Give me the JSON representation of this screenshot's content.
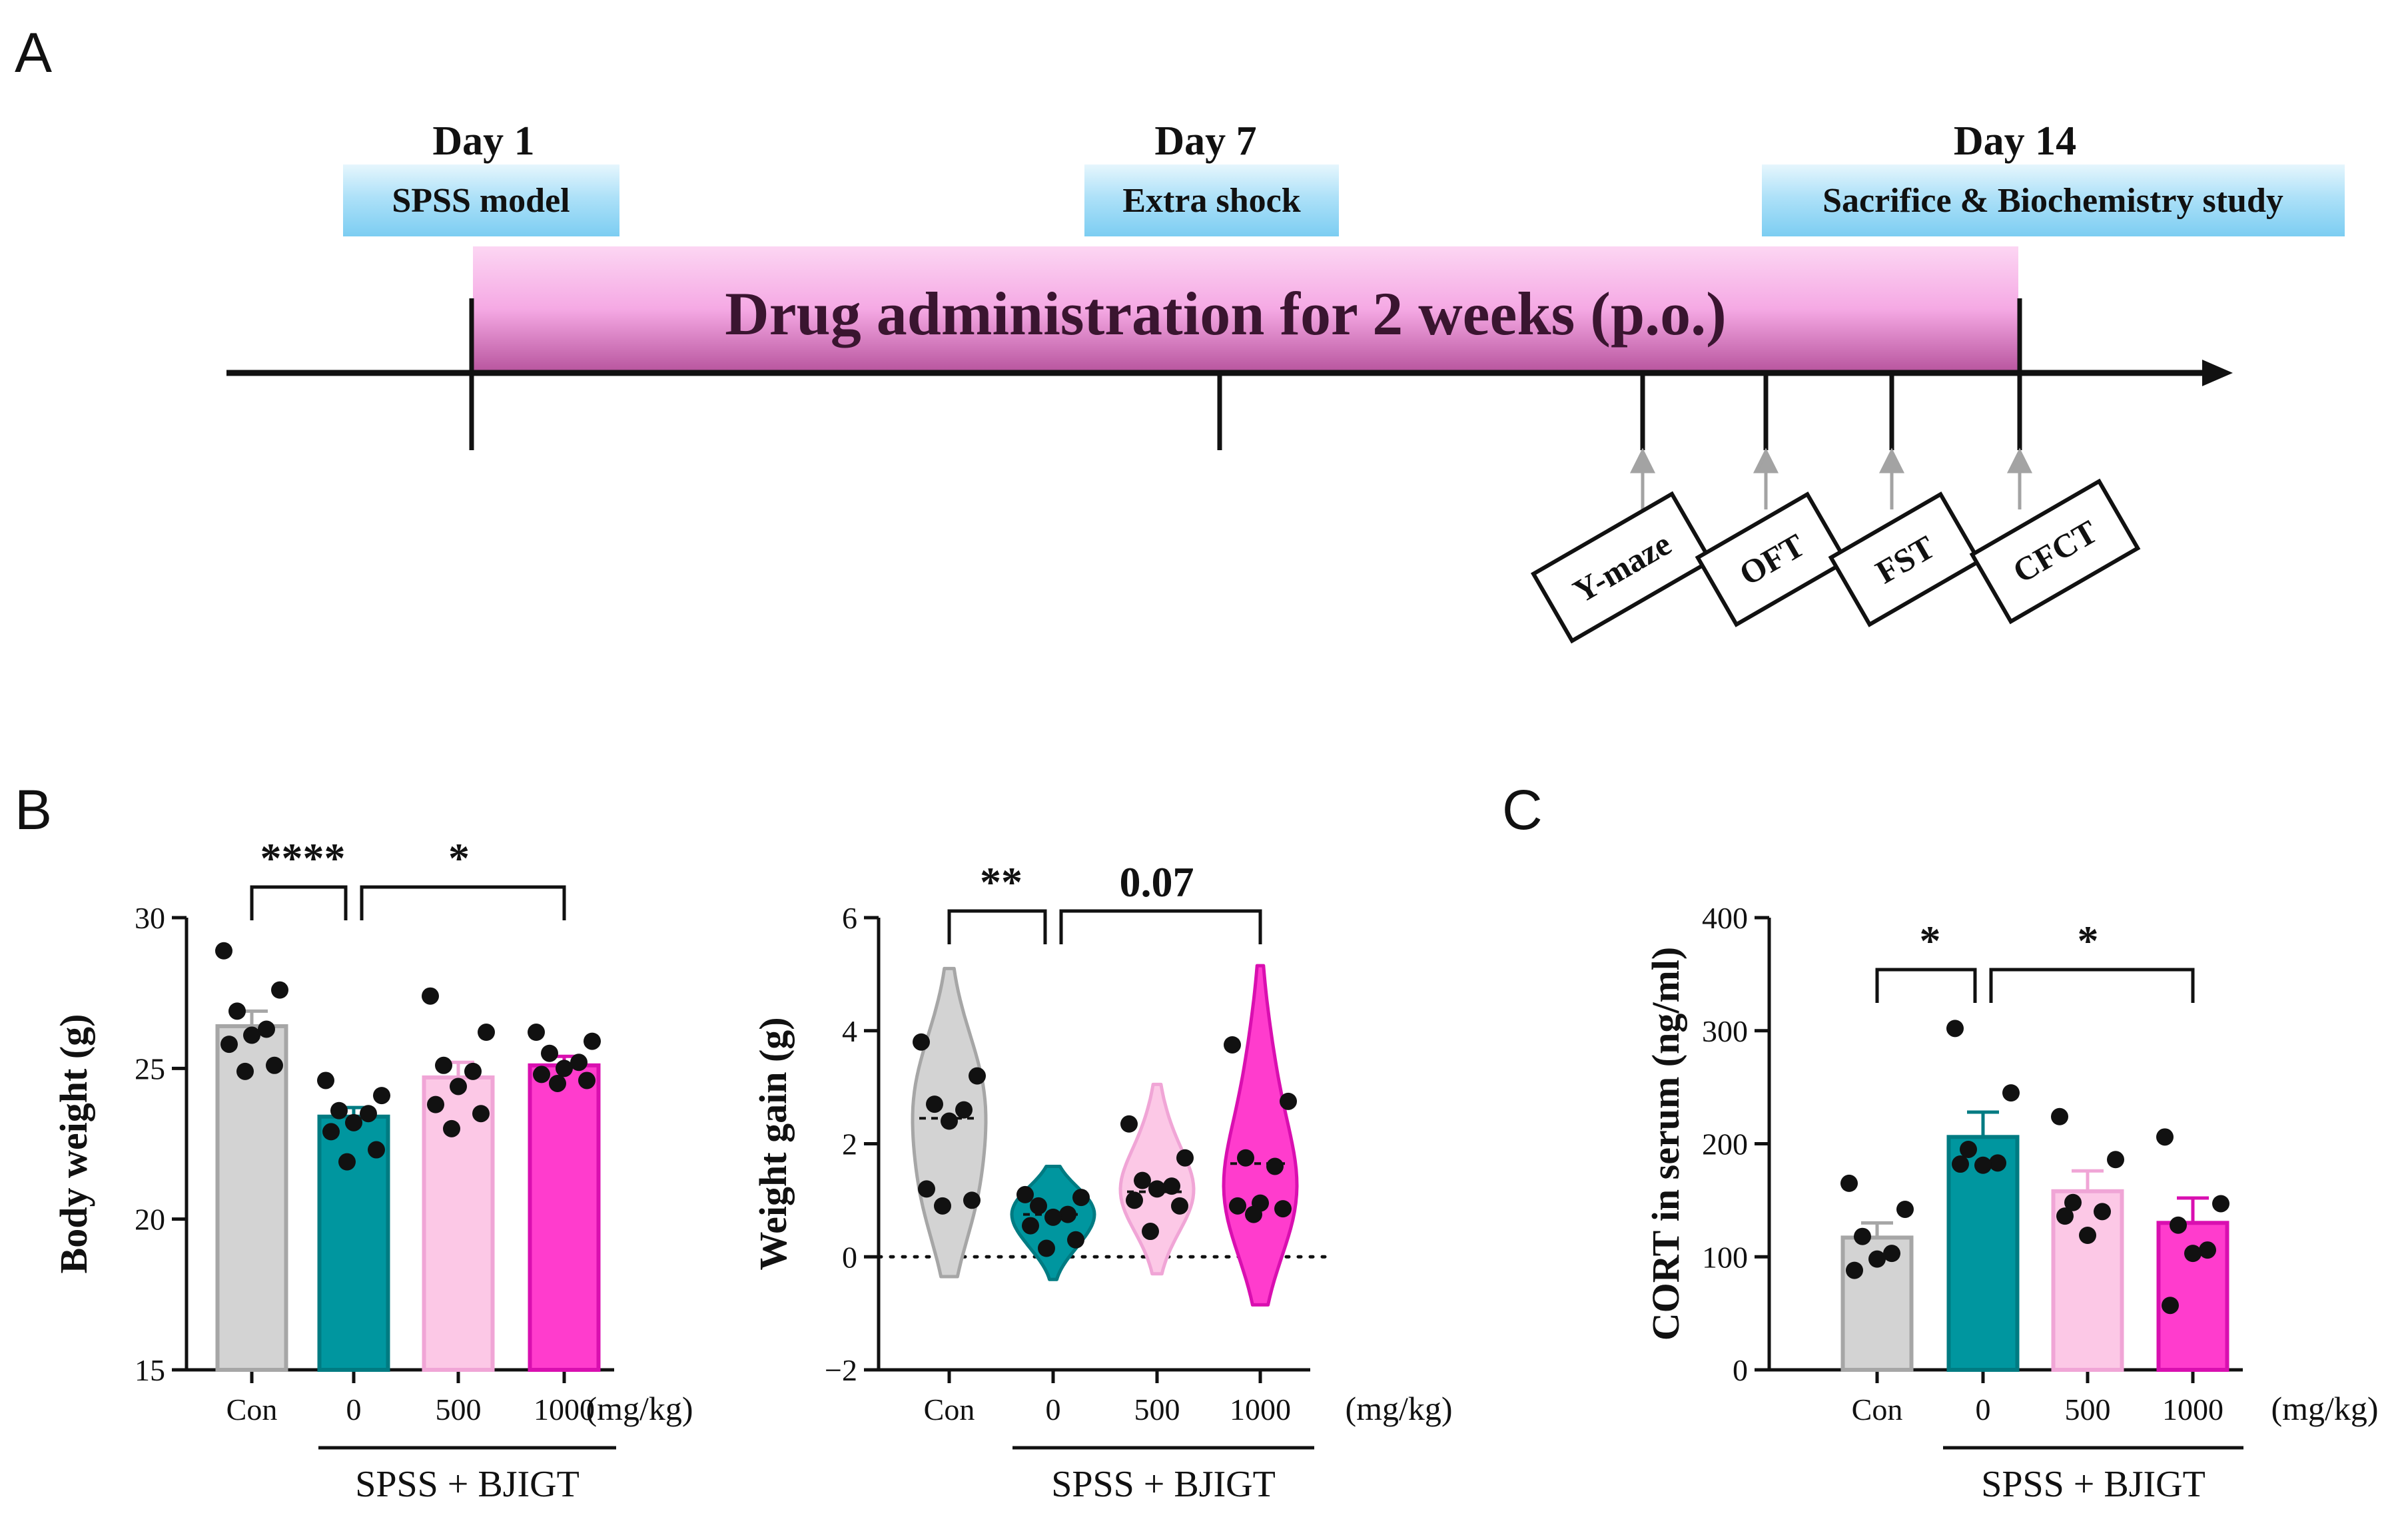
{
  "panels": {
    "A": "A",
    "B": "B",
    "C": "C"
  },
  "timeline": {
    "days": [
      {
        "label": "Day 1",
        "event": "SPSS model"
      },
      {
        "label": "Day 7",
        "event": "Extra shock"
      },
      {
        "label": "Day 14",
        "event": "Sacrifice &  Biochemistry study"
      }
    ],
    "drug_bar": "Drug administration for 2 weeks (p.o.)",
    "tests": [
      "Y-maze",
      "OFT",
      "FST",
      "CFCT"
    ]
  },
  "colors": {
    "con": "#d3d3d3",
    "spss0": "#00969f",
    "bjigt500": "#fcc8e6",
    "bjigt1000": "#ff3ccd",
    "label_box": "#aee1f8",
    "drug_bar": "#f8b8ea"
  },
  "chart_data": [
    {
      "type": "bar",
      "title": "",
      "categories": [
        "Con",
        "0",
        "500",
        "1000"
      ],
      "unit_label": "(mg/kg)",
      "group_label": "SPSS + BJIGT",
      "ylabel": "Body weight (g)",
      "ylim": [
        15,
        30
      ],
      "yticks": [
        15,
        20,
        25,
        30
      ],
      "values": [
        26.4,
        23.4,
        24.7,
        25.1
      ],
      "sem": [
        0.5,
        0.3,
        0.5,
        0.3
      ],
      "points": [
        [
          28.9,
          27.6,
          26.9,
          26.3,
          26.1,
          25.8,
          25.1,
          24.9
        ],
        [
          24.6,
          24.1,
          23.6,
          23.5,
          23.2,
          22.9,
          22.3,
          21.9
        ],
        [
          27.4,
          26.2,
          25.1,
          24.9,
          24.4,
          23.8,
          23.5,
          23.0
        ],
        [
          26.2,
          25.9,
          25.5,
          25.2,
          25.0,
          24.8,
          24.6,
          24.5
        ]
      ],
      "significance": [
        {
          "from": 0,
          "to": 1,
          "label": "****"
        },
        {
          "from": 1,
          "to": 3,
          "label": "*"
        }
      ]
    },
    {
      "type": "violin",
      "title": "",
      "categories": [
        "Con",
        "0",
        "500",
        "1000"
      ],
      "unit_label": "(mg/kg)",
      "group_label": "SPSS + BJIGT",
      "ylabel": "Weight gain (g)",
      "ylim": [
        -2,
        6
      ],
      "yticks": [
        -2,
        0,
        2,
        4,
        6
      ],
      "ytick_labels": [
        "−2",
        "0",
        "2",
        "4",
        "6"
      ],
      "medians": [
        2.45,
        0.75,
        1.15,
        1.65
      ],
      "ranges": [
        [
          -0.35,
          5.1
        ],
        [
          -0.4,
          1.6
        ],
        [
          -0.3,
          3.05
        ],
        [
          -0.85,
          5.15
        ]
      ],
      "points": [
        [
          3.8,
          3.2,
          2.7,
          2.6,
          2.4,
          1.2,
          1.0,
          0.9
        ],
        [
          1.1,
          1.05,
          0.9,
          0.75,
          0.7,
          0.55,
          0.3,
          0.15
        ],
        [
          2.35,
          1.75,
          1.35,
          1.25,
          1.2,
          1.0,
          0.9,
          0.45
        ],
        [
          3.75,
          2.75,
          1.75,
          1.6,
          0.95,
          0.9,
          0.85,
          0.75
        ]
      ],
      "significance": [
        {
          "from": 0,
          "to": 1,
          "label": "**"
        },
        {
          "from": 1,
          "to": 3,
          "label": "0.07"
        }
      ]
    },
    {
      "type": "bar",
      "title": "",
      "categories": [
        "Con",
        "0",
        "500",
        "1000"
      ],
      "unit_label": "(mg/kg)",
      "group_label": "SPSS + BJIGT",
      "ylabel": "CORT  in serum (ng/ml)",
      "ylim": [
        0,
        400
      ],
      "yticks": [
        0,
        100,
        200,
        300,
        400
      ],
      "values": [
        117,
        206,
        158,
        130
      ],
      "sem": [
        13,
        22,
        18,
        22
      ],
      "points": [
        [
          165,
          142,
          118,
          103,
          98,
          88
        ],
        [
          302,
          245,
          195,
          183,
          181,
          182
        ],
        [
          224,
          186,
          148,
          140,
          119,
          136
        ],
        [
          206,
          147,
          128,
          106,
          103,
          57
        ]
      ],
      "significance": [
        {
          "from": 0,
          "to": 1,
          "label": "*"
        },
        {
          "from": 1,
          "to": 3,
          "label": "*"
        }
      ]
    }
  ]
}
